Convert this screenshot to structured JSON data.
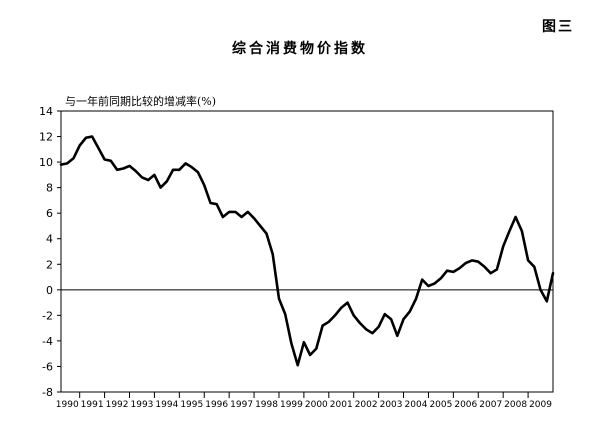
{
  "figure_label": "图三",
  "chart_data": {
    "type": "line",
    "title": "综合消费物价指数",
    "ylabel": "与一年前同期比较的增减率(%)",
    "xlabel": "",
    "ylim": [
      -8,
      14
    ],
    "yticks": [
      -8,
      -6,
      -4,
      -2,
      0,
      2,
      4,
      6,
      8,
      10,
      12,
      14
    ],
    "xlim": [
      1989.75,
      2009.5
    ],
    "xtick_labels": [
      "1990",
      "1991",
      "1992",
      "1993",
      "1994",
      "1995",
      "1996",
      "1997",
      "1998",
      "1999",
      "2000",
      "2001",
      "2002",
      "2003",
      "2004",
      "2005",
      "2006",
      "2007",
      "2008",
      "2009"
    ],
    "grid": false,
    "zero_line": true,
    "line_color": "#000000",
    "series": [
      {
        "x": [
          1989.75,
          1990.0,
          1990.25,
          1990.5,
          1990.75,
          1991.0,
          1991.25,
          1991.5,
          1991.75,
          1992.0,
          1992.25,
          1992.5,
          1992.75,
          1993.0,
          1993.25,
          1993.5,
          1993.75,
          1994.0,
          1994.25,
          1994.5,
          1994.75,
          1995.0,
          1995.25,
          1995.5,
          1995.75,
          1996.0,
          1996.25,
          1996.5,
          1996.75,
          1997.0,
          1997.25,
          1997.5,
          1997.75,
          1998.0,
          1998.25,
          1998.5,
          1998.75,
          1999.0,
          1999.25,
          1999.5,
          1999.75,
          2000.0,
          2000.25,
          2000.5,
          2000.75,
          2001.0,
          2001.25,
          2001.5,
          2001.75,
          2002.0,
          2002.25,
          2002.5,
          2002.75,
          2003.0,
          2003.25,
          2003.5,
          2003.75,
          2004.0,
          2004.25,
          2004.5,
          2004.75,
          2005.0,
          2005.25,
          2005.5,
          2005.75,
          2006.0,
          2006.25,
          2006.5,
          2006.75,
          2007.0,
          2007.25,
          2007.5,
          2007.75,
          2008.0,
          2008.25,
          2008.5,
          2008.75,
          2009.0,
          2009.25,
          2009.5
        ],
        "values": [
          9.8,
          9.9,
          10.3,
          11.3,
          11.9,
          12.0,
          11.1,
          10.2,
          10.1,
          9.4,
          9.5,
          9.7,
          9.3,
          8.8,
          8.6,
          9.0,
          8.0,
          8.5,
          9.4,
          9.4,
          9.9,
          9.6,
          9.2,
          8.2,
          6.8,
          6.7,
          5.7,
          6.1,
          6.1,
          5.7,
          6.1,
          5.6,
          5.0,
          4.4,
          2.8,
          -0.7,
          -1.9,
          -4.2,
          -5.9,
          -4.1,
          -5.1,
          -4.6,
          -2.8,
          -2.5,
          -2.0,
          -1.4,
          -1.0,
          -2.0,
          -2.6,
          -3.1,
          -3.4,
          -2.9,
          -1.9,
          -2.3,
          -3.6,
          -2.3,
          -1.7,
          -0.7,
          0.8,
          0.3,
          0.5,
          0.9,
          1.5,
          1.4,
          1.7,
          2.1,
          2.3,
          2.2,
          1.8,
          1.3,
          1.6,
          3.4,
          4.6,
          5.7,
          4.6,
          2.3,
          1.8,
          0.0,
          -0.9,
          1.3
        ]
      }
    ]
  }
}
